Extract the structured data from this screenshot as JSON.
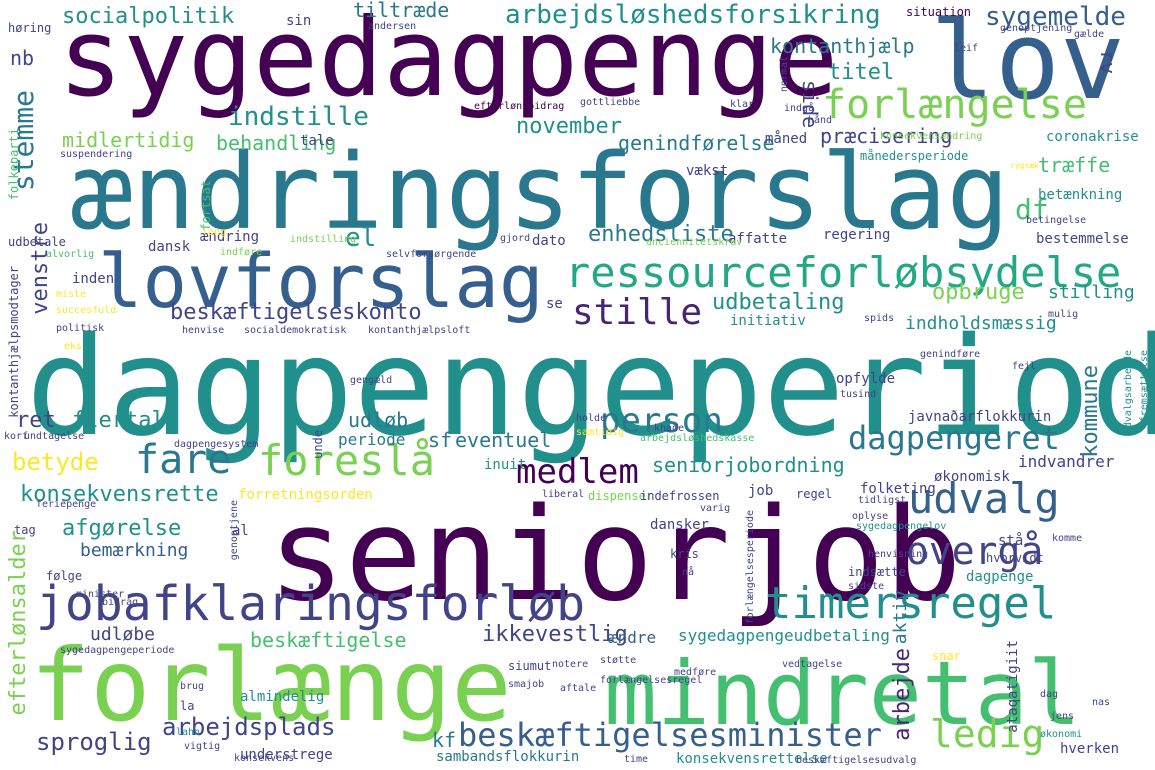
{
  "palette": {
    "purple": "#440154",
    "indigo": "#482475",
    "violet": "#414487",
    "blue": "#355f8d",
    "steel": "#2a788e",
    "teal": "#21908d",
    "sea": "#22a884",
    "green": "#44bf70",
    "lime": "#7ad151",
    "yellow": "#fde725"
  },
  "words": [
    "sygedagpenge",
    "lov",
    "ændringsforslag",
    "lovforslag",
    "ressourceforløbsydelse",
    "dagpengeperiode",
    "seniorjob",
    "jobafklaringsforløb",
    "forlænge",
    "mindretal",
    "forlængelse",
    "timersregel",
    "udvalg",
    "foreslå",
    "fare",
    "person",
    "dagpengeret",
    "stille",
    "medlem",
    "overgå",
    "beskæftigelsesminister",
    "ledig",
    "arbejdsløshedsforsikring",
    "socialpolitik",
    "sygemelde",
    "tiltræde",
    "kontanthjælp",
    "indstille",
    "stemme",
    "november",
    "titel",
    "midlertidig",
    "behandling",
    "genindførelse",
    "præcisering",
    "træffe",
    "enhedsliste",
    "df",
    "el",
    "betænkning",
    "venstre",
    "beskæftigelseskonto",
    "udbetaling",
    "opbruge",
    "stilling",
    "initiativ",
    "indholdsmæssig",
    "ret",
    "flertal",
    "udløb",
    "periode",
    "sf",
    "eventuel",
    "betyde",
    "seniorjobordning",
    "konsekvensrette",
    "afgørelse",
    "bemærkning",
    "efterlønsalder",
    "sproglig",
    "arbejdsplads",
    "kf",
    "beskæftigelse",
    "ikkevestlig",
    "ændre",
    "sygedagpengeudbetaling",
    "arbejde",
    "aktiv",
    "kommune",
    "indvandrer",
    "økonomisk",
    "udløbe",
    "almindelig",
    "understrege",
    "sambandsflokkurin",
    "konsekvensrettelse",
    "dagpenge",
    "hverken",
    "nb",
    "rv",
    "side",
    "måned",
    "vækst",
    "tale",
    "regering",
    "dato",
    "affatte",
    "bestemmelse",
    "dansk",
    "ændring",
    "inden",
    "se",
    "arbejdsløshedskasse",
    "javnaðarflokkurin",
    "coronakrise",
    "månedersperiode",
    "konsekvensændring",
    "inuit",
    "folketing",
    "job",
    "regel",
    "dansker",
    "stå",
    "hvorvidt",
    "al",
    "tag",
    "følge",
    "minister",
    "kris",
    "nå",
    "sidste",
    "indsætte",
    "situation",
    "andersen",
    "høring",
    "sin",
    "genoptjening",
    "leif",
    "gælde",
    "udbetale",
    "folkeparti",
    "fortsat",
    "lang",
    "indstilling",
    "alvorlig",
    "indføre",
    "selvforsørgende",
    "gjord",
    "anciennitetskrav",
    "betingelse",
    "efterlønsbidrag",
    "gottliebbe",
    "klar",
    "normal",
    "indgå",
    "hånd",
    "suspendering",
    "kontanthjælpsmodtager",
    "miste",
    "succesfuld",
    "politisk",
    "henvise",
    "socialdemokratisk",
    "kontanthjælpsloft",
    "spids",
    "mulig",
    "eks",
    "genindføre",
    "gengæld",
    "opfylde",
    "tusind",
    "fejl",
    "udvalgsarbejde",
    "fremsættelse",
    "holde",
    "khade",
    "korf",
    "undtagelse",
    "samtidig",
    "dagpengesystem",
    "unde",
    "feriepenge",
    "forretningsorden",
    "dispenser",
    "liberal",
    "indefrossen",
    "varig",
    "tidligst",
    "oplyse",
    "sygedagpengelov",
    "komme",
    "genoptjene",
    "bidrag",
    "henvisning",
    "ataqatigiit",
    "forlængelsesperiode",
    "sygedagpengeperiode",
    "siumut",
    "notere",
    "støtte",
    "forlængelsesregel",
    "vedtagelse",
    "snar",
    "medføre",
    "brug",
    "smajob",
    "aftale",
    "la",
    "dag",
    "jens",
    "lahn",
    "økonomi",
    "vigtig",
    "konsekvens",
    "time",
    "beskæftigelsesudvalg",
    "nas",
    "rygsæk"
  ]
}
